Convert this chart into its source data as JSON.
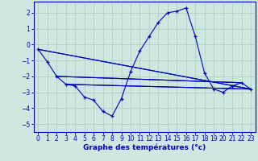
{
  "xlabel": "Graphe des températures (°c)",
  "background_color": "#cce8e0",
  "grid_color": "#aaccbb",
  "line_color": "#0000bb",
  "spine_color": "#0000bb",
  "xlim": [
    -0.5,
    23.5
  ],
  "ylim": [
    -5.5,
    2.7
  ],
  "xticks": [
    0,
    1,
    2,
    3,
    4,
    5,
    6,
    7,
    8,
    9,
    10,
    11,
    12,
    13,
    14,
    15,
    16,
    17,
    18,
    19,
    20,
    21,
    22,
    23
  ],
  "yticks": [
    -5,
    -4,
    -3,
    -2,
    -1,
    0,
    1,
    2
  ],
  "main_series": {
    "x": [
      0,
      1,
      2,
      3,
      4,
      5,
      6,
      7,
      8,
      9,
      10,
      11,
      12,
      13,
      14,
      15,
      16,
      17,
      18,
      19,
      20,
      21,
      22,
      23
    ],
    "y": [
      -0.3,
      -1.1,
      -2.0,
      -2.5,
      -2.6,
      -3.3,
      -3.5,
      -4.2,
      -4.5,
      -3.4,
      -1.7,
      -0.4,
      0.5,
      1.4,
      2.0,
      2.1,
      2.3,
      0.5,
      -1.8,
      -2.8,
      -3.0,
      -2.6,
      -2.4,
      -2.8
    ]
  },
  "trend_lines": [
    {
      "x": [
        0,
        23
      ],
      "y": [
        -0.3,
        -2.8
      ]
    },
    {
      "x": [
        0,
        23
      ],
      "y": [
        -0.3,
        -2.8
      ]
    },
    {
      "x": [
        2,
        22
      ],
      "y": [
        -2.0,
        -2.4
      ]
    },
    {
      "x": [
        2,
        22
      ],
      "y": [
        -2.0,
        -2.4
      ]
    },
    {
      "x": [
        3,
        23
      ],
      "y": [
        -2.5,
        -2.8
      ]
    },
    {
      "x": [
        3,
        23
      ],
      "y": [
        -2.5,
        -2.8
      ]
    }
  ]
}
